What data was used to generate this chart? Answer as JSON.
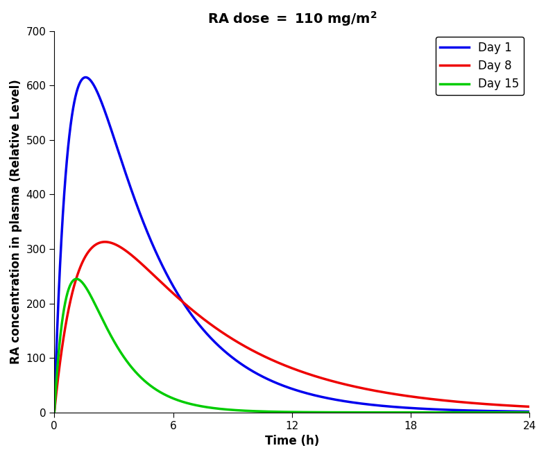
{
  "title": "RA dose = 110 mg/m²",
  "xlabel": "Time (h)",
  "ylabel": "RA concentration in plasma (Relative Level)",
  "xlim": [
    0,
    24
  ],
  "ylim": [
    0,
    700
  ],
  "xticks": [
    0,
    6,
    12,
    18,
    24
  ],
  "yticks": [
    0,
    100,
    200,
    300,
    400,
    500,
    600,
    700
  ],
  "lines": [
    {
      "label": "Day 1",
      "color": "#0000EE",
      "ka": 1.2,
      "ke": 0.28,
      "peak": 615
    },
    {
      "label": "Day 8",
      "color": "#EE0000",
      "ka": 0.75,
      "ke": 0.17,
      "peak": 313
    },
    {
      "label": "Day 15",
      "color": "#00CC00",
      "ka": 1.3,
      "ke": 0.58,
      "peak": 245
    }
  ],
  "legend_loc": "upper right",
  "linewidth": 2.5,
  "title_fontsize": 14,
  "label_fontsize": 12,
  "tick_fontsize": 11,
  "legend_fontsize": 12
}
